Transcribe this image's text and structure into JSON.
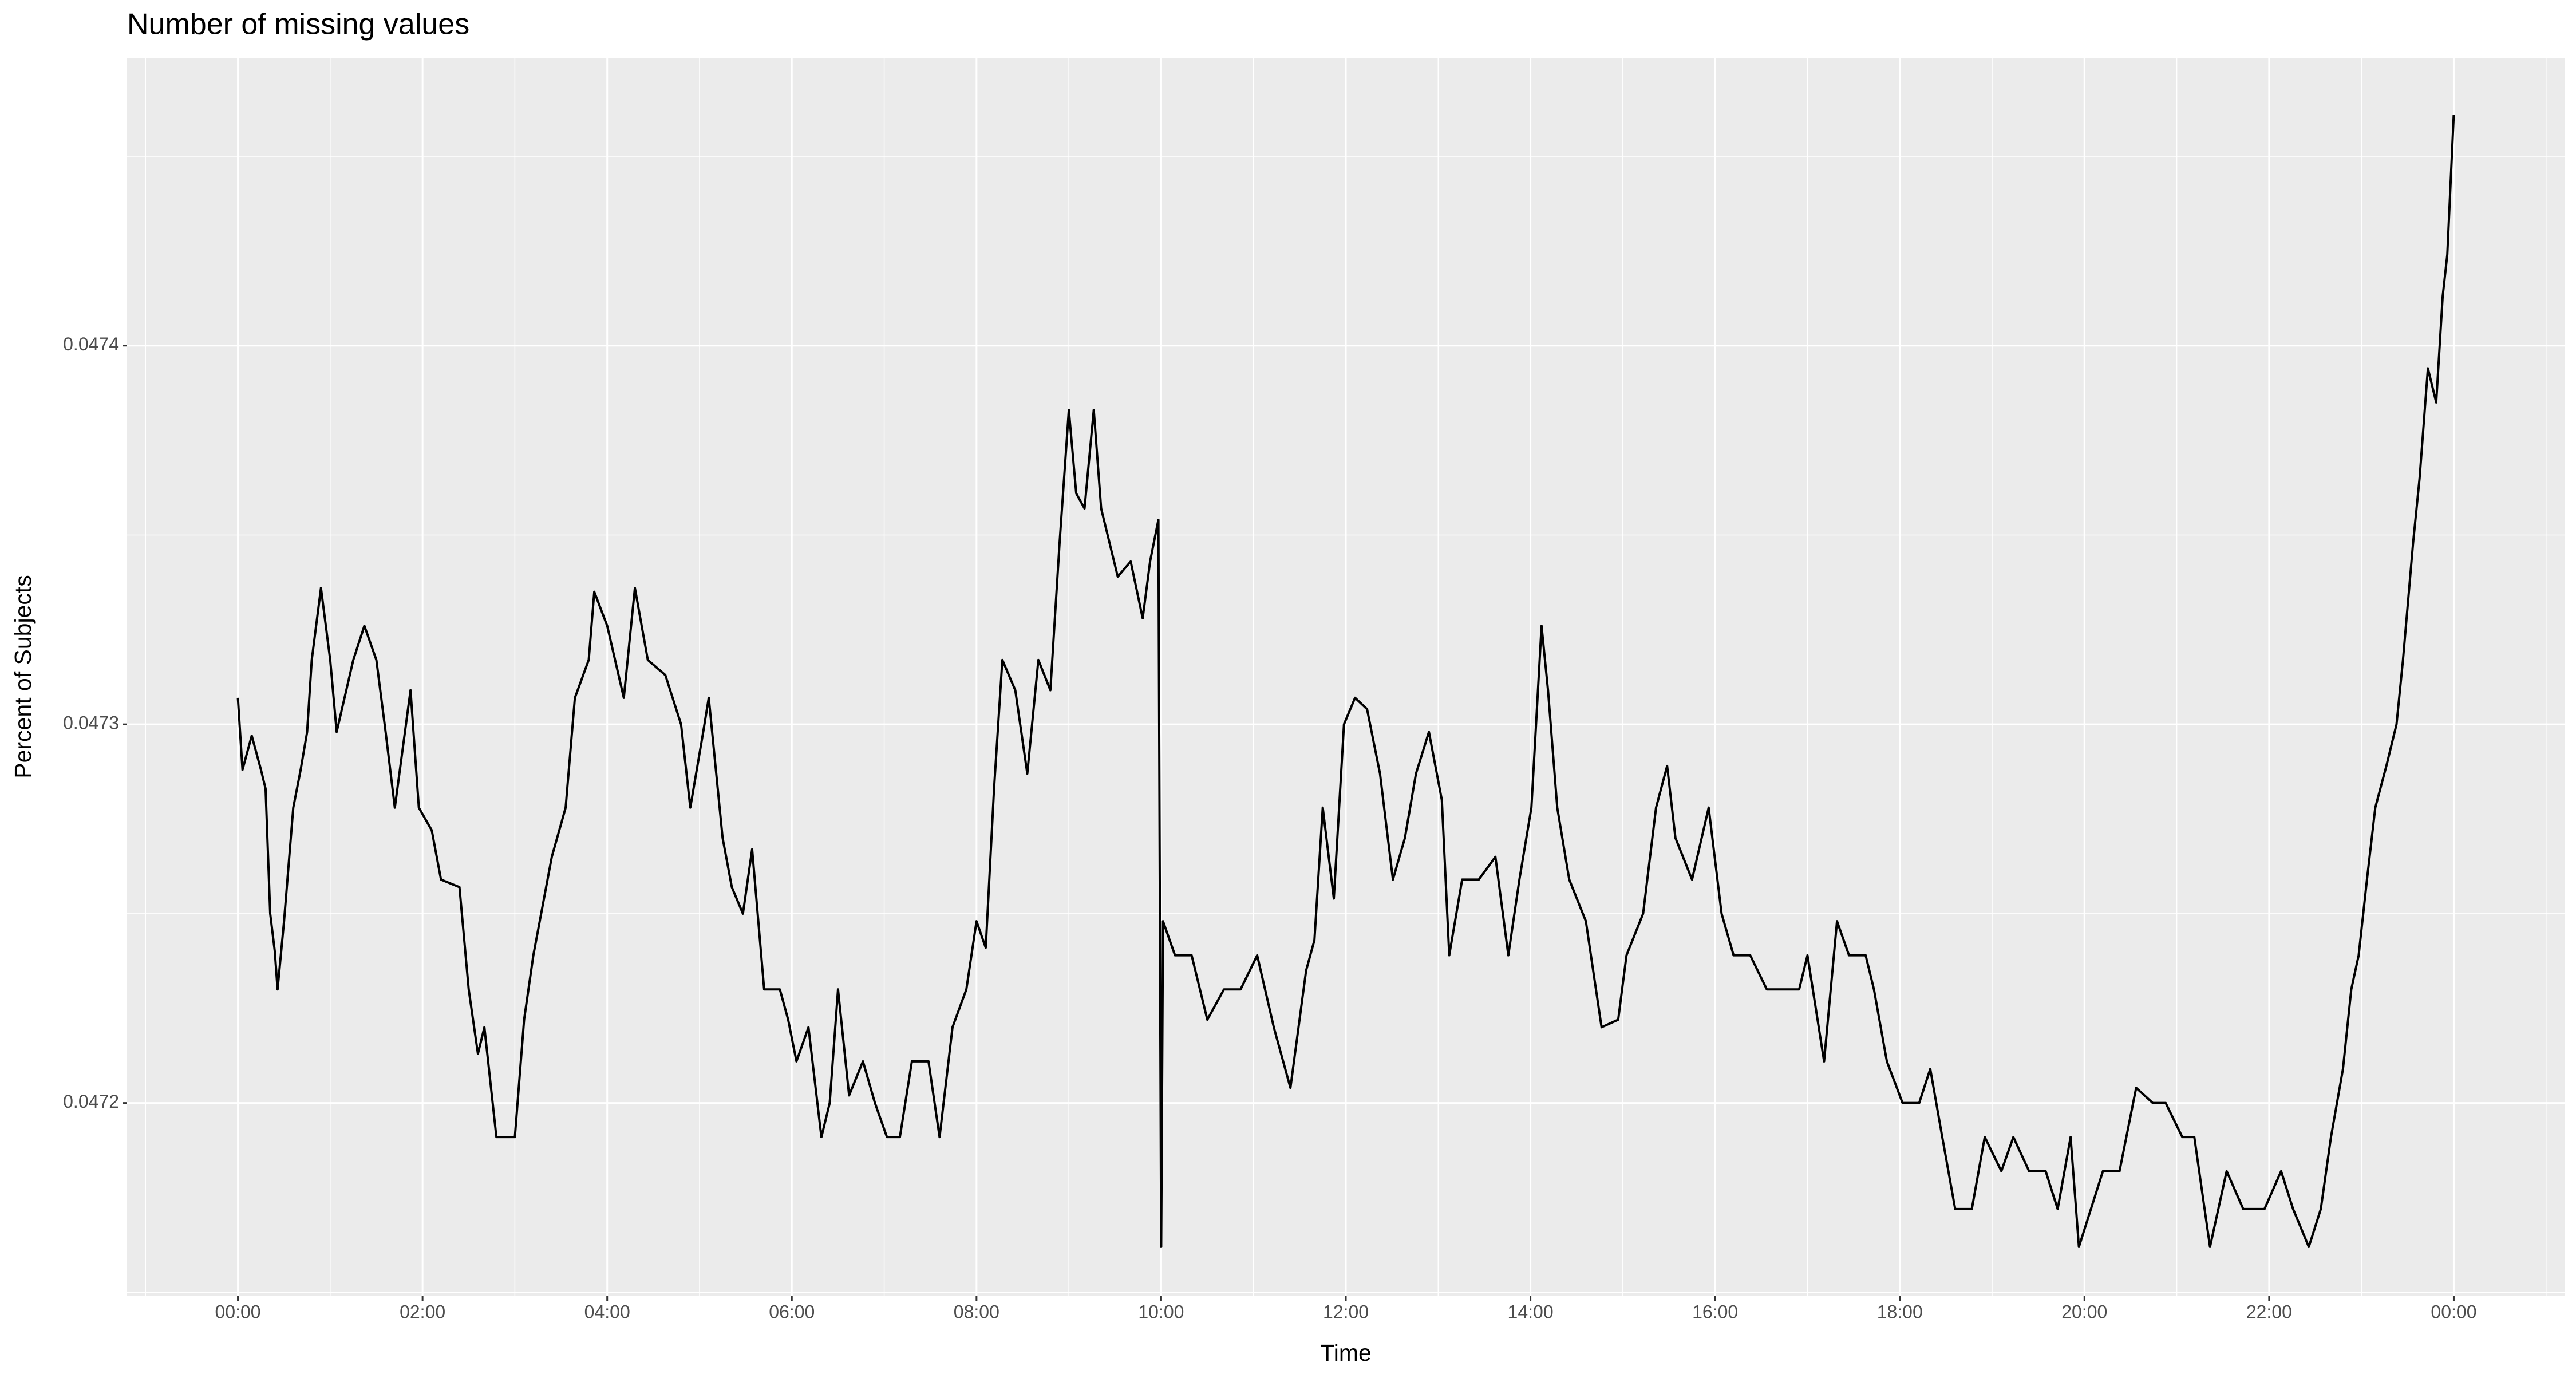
{
  "chart_data": {
    "type": "line",
    "title": "Number of missing values",
    "xlabel": "Time",
    "ylabel": "Percent of Subjects",
    "x": [
      0,
      0.05,
      0.15,
      0.25,
      0.3,
      0.35,
      0.4,
      0.43,
      0.5,
      0.6,
      0.68,
      0.75,
      0.8,
      0.9,
      1.0,
      1.07,
      1.25,
      1.37,
      1.5,
      1.6,
      1.7,
      1.87,
      1.96,
      2.1,
      2.2,
      2.4,
      2.5,
      2.6,
      2.67,
      2.8,
      3.0,
      3.1,
      3.2,
      3.4,
      3.55,
      3.65,
      3.8,
      3.86,
      4.0,
      4.18,
      4.3,
      4.44,
      4.63,
      4.8,
      4.9,
      5.04,
      5.1,
      5.25,
      5.35,
      5.47,
      5.57,
      5.7,
      5.87,
      5.96,
      6.05,
      6.18,
      6.32,
      6.41,
      6.5,
      6.62,
      6.77,
      6.9,
      7.03,
      7.17,
      7.3,
      7.48,
      7.6,
      7.74,
      7.89,
      8.0,
      8.1,
      8.19,
      8.28,
      8.42,
      8.55,
      8.67,
      8.8,
      8.9,
      9.0,
      9.08,
      9.17,
      9.27,
      9.35,
      9.44,
      9.53,
      9.67,
      9.8,
      9.88,
      9.97,
      10.0,
      10.02,
      10.15,
      10.33,
      10.5,
      10.68,
      10.86,
      11.04,
      11.22,
      11.4,
      11.57,
      11.66,
      11.75,
      11.87,
      11.98,
      12.1,
      12.23,
      12.37,
      12.51,
      12.64,
      12.76,
      12.9,
      13.04,
      13.12,
      13.26,
      13.44,
      13.62,
      13.76,
      13.88,
      14.01,
      14.12,
      14.19,
      14.29,
      14.42,
      14.6,
      14.77,
      14.95,
      15.04,
      15.22,
      15.36,
      15.48,
      15.57,
      15.75,
      15.93,
      16.07,
      16.2,
      16.38,
      16.56,
      16.74,
      16.91,
      17.0,
      17.18,
      17.32,
      17.45,
      17.63,
      17.72,
      17.86,
      18.03,
      18.21,
      18.33,
      18.46,
      18.6,
      18.78,
      18.92,
      19.1,
      19.23,
      19.4,
      19.58,
      19.71,
      19.85,
      19.94,
      20.07,
      20.2,
      20.38,
      20.56,
      20.74,
      20.88,
      21.06,
      21.19,
      21.36,
      21.54,
      21.72,
      21.95,
      22.13,
      22.26,
      22.43,
      22.56,
      22.67,
      22.8,
      22.89,
      22.97,
      23.06,
      23.15,
      23.27,
      23.38,
      23.45,
      23.56,
      23.63,
      23.72,
      23.81,
      23.88,
      23.93,
      24.0
    ],
    "values": [
      0.047307,
      0.047288,
      0.047297,
      0.047288,
      0.047283,
      0.04725,
      0.04724,
      0.04723,
      0.047248,
      0.047278,
      0.047288,
      0.047298,
      0.047317,
      0.047336,
      0.047317,
      0.047298,
      0.047317,
      0.047326,
      0.047317,
      0.047298,
      0.047278,
      0.047309,
      0.047278,
      0.047272,
      0.047259,
      0.047257,
      0.04723,
      0.047213,
      0.04722,
      0.047191,
      0.047191,
      0.047222,
      0.047239,
      0.047265,
      0.047278,
      0.047307,
      0.047317,
      0.047335,
      0.047326,
      0.047307,
      0.047336,
      0.047317,
      0.047313,
      0.0473,
      0.047278,
      0.047298,
      0.047307,
      0.04727,
      0.047257,
      0.04725,
      0.047267,
      0.04723,
      0.04723,
      0.047222,
      0.047211,
      0.04722,
      0.047191,
      0.0472,
      0.04723,
      0.047202,
      0.047211,
      0.0472,
      0.047191,
      0.047191,
      0.047211,
      0.047211,
      0.047191,
      0.04722,
      0.04723,
      0.047248,
      0.047241,
      0.047283,
      0.047317,
      0.047309,
      0.047287,
      0.047317,
      0.047309,
      0.047348,
      0.047383,
      0.047361,
      0.047357,
      0.047383,
      0.047357,
      0.047348,
      0.047339,
      0.047343,
      0.047328,
      0.047343,
      0.047354,
      0.047162,
      0.047248,
      0.047239,
      0.047239,
      0.047222,
      0.04723,
      0.04723,
      0.047239,
      0.04722,
      0.047204,
      0.047235,
      0.047243,
      0.047278,
      0.047254,
      0.0473,
      0.047307,
      0.047304,
      0.047287,
      0.047259,
      0.04727,
      0.047287,
      0.047298,
      0.04728,
      0.047239,
      0.047259,
      0.047259,
      0.047265,
      0.047239,
      0.047259,
      0.047278,
      0.047326,
      0.047309,
      0.047278,
      0.047259,
      0.047248,
      0.04722,
      0.047222,
      0.047239,
      0.04725,
      0.047278,
      0.047289,
      0.04727,
      0.047259,
      0.047278,
      0.04725,
      0.047239,
      0.047239,
      0.04723,
      0.04723,
      0.04723,
      0.047239,
      0.047211,
      0.047248,
      0.047239,
      0.047239,
      0.04723,
      0.047211,
      0.0472,
      0.0472,
      0.047209,
      0.047191,
      0.047172,
      0.047172,
      0.047191,
      0.047182,
      0.047191,
      0.047182,
      0.047182,
      0.047172,
      0.047191,
      0.047162,
      0.047172,
      0.047182,
      0.047182,
      0.047204,
      0.0472,
      0.0472,
      0.047191,
      0.047191,
      0.047162,
      0.047182,
      0.047172,
      0.047172,
      0.047182,
      0.047172,
      0.047162,
      0.047172,
      0.047191,
      0.047209,
      0.04723,
      0.047239,
      0.047259,
      0.047278,
      0.047289,
      0.0473,
      0.047317,
      0.047348,
      0.047365,
      0.047394,
      0.047385,
      0.047413,
      0.047424,
      0.047461
    ],
    "color": "#000000",
    "xlim": [
      -1.2,
      25.2
    ],
    "xticks": [
      {
        "value": 0,
        "label": "00:00"
      },
      {
        "value": 2,
        "label": "02:00"
      },
      {
        "value": 4,
        "label": "04:00"
      },
      {
        "value": 6,
        "label": "06:00"
      },
      {
        "value": 8,
        "label": "08:00"
      },
      {
        "value": 10,
        "label": "10:00"
      },
      {
        "value": 12,
        "label": "12:00"
      },
      {
        "value": 14,
        "label": "14:00"
      },
      {
        "value": 16,
        "label": "16:00"
      },
      {
        "value": 18,
        "label": "18:00"
      },
      {
        "value": 20,
        "label": "20:00"
      },
      {
        "value": 22,
        "label": "22:00"
      },
      {
        "value": 24,
        "label": "00:00"
      }
    ],
    "ylim": [
      0.047149,
      0.047476
    ],
    "yticks": [
      0.0472,
      0.0473,
      0.0474
    ],
    "grid": true
  }
}
